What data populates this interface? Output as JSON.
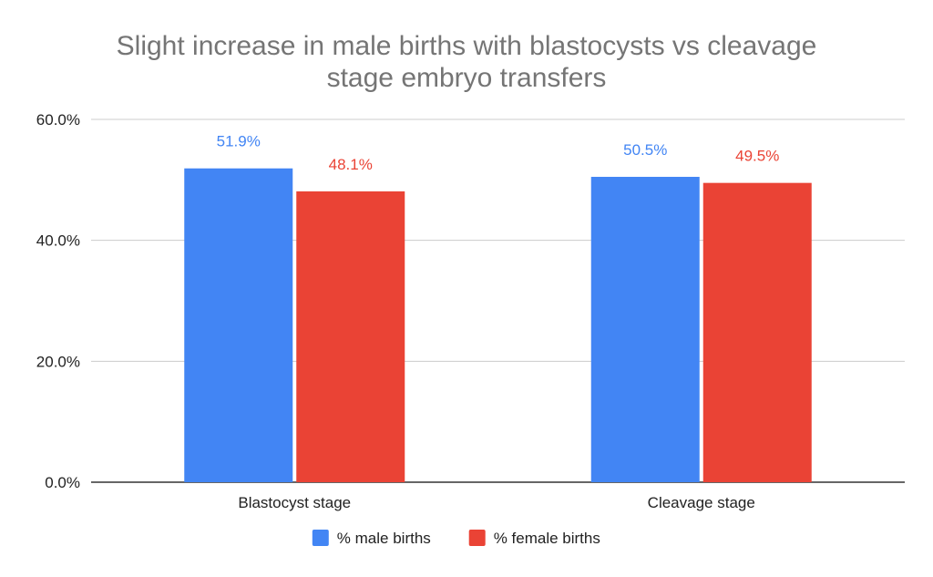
{
  "chart_data": {
    "type": "bar",
    "title_lines": [
      "Slight increase in male births with blastocysts vs cleavage",
      "stage embryo transfers"
    ],
    "xlabel": "",
    "ylabel": "",
    "categories": [
      "Blastocyst stage",
      "Cleavage stage"
    ],
    "series": [
      {
        "name": "% male births",
        "values": [
          51.9,
          50.5
        ],
        "labels": [
          "51.9%",
          "50.5%"
        ],
        "color": "#4285f4"
      },
      {
        "name": "% female births",
        "values": [
          48.1,
          49.5
        ],
        "labels": [
          "48.1%",
          "49.5%"
        ],
        "color": "#ea4335"
      }
    ],
    "ylim": [
      0,
      60
    ],
    "yticks": [
      0,
      20,
      40,
      60
    ],
    "ytick_labels": [
      "0.0%",
      "20.0%",
      "40.0%",
      "60.0%"
    ],
    "grid": true,
    "legend_position": "bottom"
  }
}
